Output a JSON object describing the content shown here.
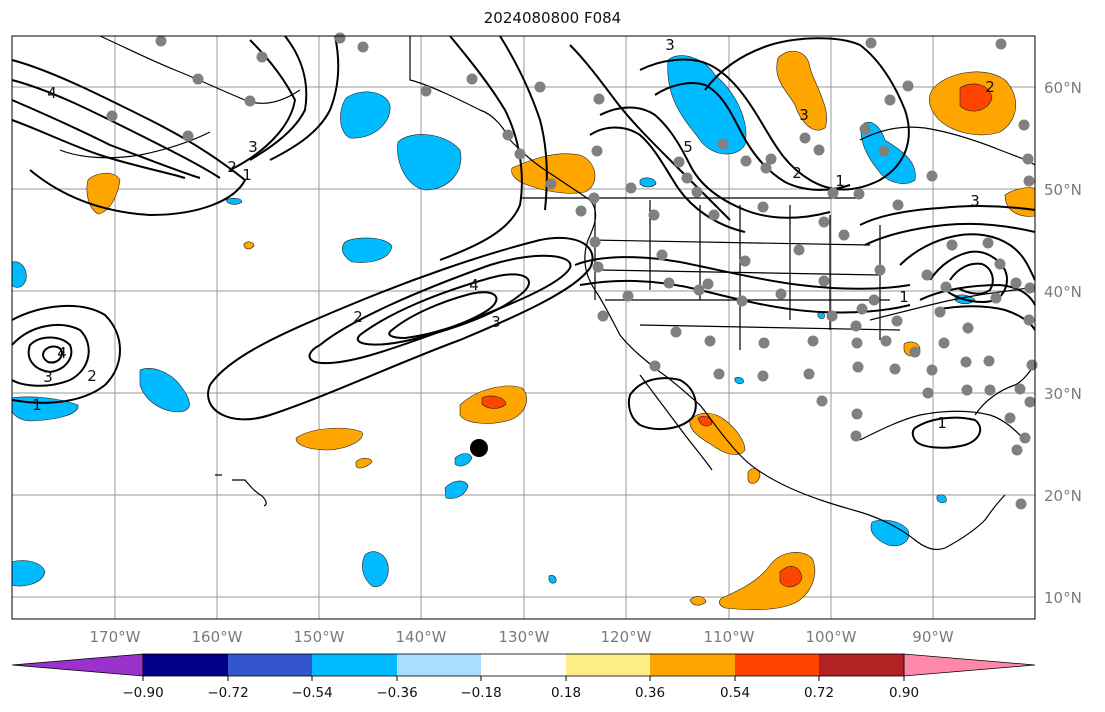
{
  "title": "2024080800 F084",
  "map": {
    "lon_labels": [
      "170°W",
      "160°W",
      "150°W",
      "140°W",
      "130°W",
      "120°W",
      "110°W",
      "100°W",
      "90°W"
    ],
    "lat_labels": [
      "60°N",
      "50°N",
      "40°N",
      "30°N",
      "20°N",
      "10°N"
    ],
    "contour_labels": [
      "4",
      "3",
      "2",
      "1",
      "2",
      "3",
      "4",
      "1",
      "2",
      "3",
      "4",
      "3",
      "3",
      "5",
      "2",
      "1",
      "1",
      "2",
      "3",
      "1"
    ],
    "marker": "black-dot"
  },
  "colorbar": {
    "ticks": [
      "−0.90",
      "−0.72",
      "−0.54",
      "−0.36",
      "−0.18",
      "0.18",
      "0.36",
      "0.54",
      "0.72",
      "0.90"
    ],
    "colors": [
      "#9933cc",
      "#000088",
      "#3355cc",
      "#00bbff",
      "#aaddff",
      "#ffffff",
      "#ffee88",
      "#ffa500",
      "#ff4400",
      "#b22222",
      "#ff88aa"
    ],
    "under_color": "#9933cc",
    "over_color": "#ff88aa"
  }
}
